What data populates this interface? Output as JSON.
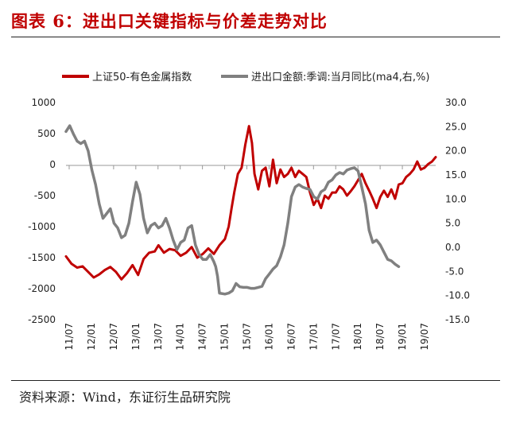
{
  "title": "图表 6：进出口关键指标与价差走势对比",
  "source": "资料来源：Wind，东证衍生品研究院",
  "colors": {
    "title": "#c00000",
    "series_primary": "#c00000",
    "series_secondary": "#808080"
  },
  "chart_data": {
    "type": "line",
    "legend_position": "top",
    "grid": false,
    "x_ticks": [
      "11/07",
      "12/01",
      "12/07",
      "13/01",
      "13/07",
      "14/01",
      "14/07",
      "15/01",
      "15/07",
      "16/01",
      "16/07",
      "17/01",
      "17/07",
      "18/01",
      "18/07",
      "19/01",
      "19/07"
    ],
    "y_left": {
      "ylim": [
        -2500,
        1000
      ],
      "ticks": [
        "1000",
        "500",
        "0",
        "-500",
        "-1000",
        "-1500",
        "-2000",
        "-2500"
      ]
    },
    "y_right": {
      "ylim": [
        -15,
        30
      ],
      "ticks": [
        "30.0",
        "25.0",
        "20.0",
        "15.0",
        "10.0",
        "5.0",
        "0.0",
        "-5.0",
        "-10.0",
        "-15.0"
      ]
    },
    "x_range": [
      0,
      100
    ],
    "series": [
      {
        "name": "上证50-有色金属指数",
        "axis": "left",
        "points": [
          [
            0,
            -1480
          ],
          [
            1.5,
            -1600
          ],
          [
            3,
            -1660
          ],
          [
            4.5,
            -1640
          ],
          [
            6,
            -1730
          ],
          [
            7.5,
            -1820
          ],
          [
            9,
            -1770
          ],
          [
            10.5,
            -1700
          ],
          [
            12,
            -1650
          ],
          [
            13.5,
            -1730
          ],
          [
            15,
            -1850
          ],
          [
            16.5,
            -1750
          ],
          [
            18,
            -1620
          ],
          [
            19.5,
            -1780
          ],
          [
            21,
            -1520
          ],
          [
            22.5,
            -1420
          ],
          [
            24,
            -1400
          ],
          [
            25,
            -1300
          ],
          [
            26.5,
            -1420
          ],
          [
            28,
            -1360
          ],
          [
            29.5,
            -1380
          ],
          [
            31,
            -1470
          ],
          [
            32.5,
            -1420
          ],
          [
            34,
            -1330
          ],
          [
            35.5,
            -1500
          ],
          [
            37,
            -1440
          ],
          [
            38.5,
            -1350
          ],
          [
            40,
            -1440
          ],
          [
            41.5,
            -1300
          ],
          [
            43,
            -1200
          ],
          [
            44,
            -1000
          ],
          [
            44.8,
            -700
          ],
          [
            45.5,
            -450
          ],
          [
            46.5,
            -150
          ],
          [
            47.5,
            -50
          ],
          [
            48.5,
            320
          ],
          [
            49.5,
            620
          ],
          [
            50.3,
            350
          ],
          [
            51,
            -150
          ],
          [
            52,
            -400
          ],
          [
            53,
            -100
          ],
          [
            54,
            -50
          ],
          [
            55,
            -350
          ],
          [
            56,
            80
          ],
          [
            57,
            -300
          ],
          [
            58,
            -80
          ],
          [
            59,
            -200
          ],
          [
            60,
            -150
          ],
          [
            61,
            -50
          ],
          [
            62,
            -200
          ],
          [
            63,
            -100
          ],
          [
            64,
            -150
          ],
          [
            65,
            -200
          ],
          [
            66,
            -450
          ],
          [
            67,
            -650
          ],
          [
            68,
            -550
          ],
          [
            69,
            -700
          ],
          [
            70,
            -500
          ],
          [
            71,
            -550
          ],
          [
            72,
            -450
          ],
          [
            73,
            -450
          ],
          [
            74,
            -350
          ],
          [
            75,
            -400
          ],
          [
            76,
            -500
          ],
          [
            77,
            -430
          ],
          [
            78,
            -350
          ],
          [
            79,
            -250
          ],
          [
            80,
            -150
          ],
          [
            81,
            -300
          ],
          [
            82,
            -420
          ],
          [
            83,
            -550
          ],
          [
            84,
            -700
          ],
          [
            85,
            -520
          ],
          [
            86,
            -420
          ],
          [
            87,
            -520
          ],
          [
            88,
            -400
          ],
          [
            89,
            -550
          ],
          [
            90,
            -320
          ],
          [
            91,
            -300
          ],
          [
            92,
            -200
          ],
          [
            93,
            -150
          ],
          [
            94,
            -80
          ],
          [
            95,
            50
          ],
          [
            96,
            -80
          ],
          [
            97,
            -50
          ],
          [
            98,
            10
          ],
          [
            99,
            50
          ],
          [
            100,
            120
          ]
        ]
      },
      {
        "name": "进出口金额:季调:当月同比(ma4,右,%)",
        "axis": "right",
        "points": [
          [
            0,
            24
          ],
          [
            1,
            25.2
          ],
          [
            2,
            23.5
          ],
          [
            3,
            22
          ],
          [
            4,
            21.5
          ],
          [
            5,
            22
          ],
          [
            6,
            20
          ],
          [
            7,
            16
          ],
          [
            8,
            13
          ],
          [
            9,
            9
          ],
          [
            10,
            6
          ],
          [
            11,
            7
          ],
          [
            12,
            8
          ],
          [
            13,
            5
          ],
          [
            14,
            4
          ],
          [
            15,
            2
          ],
          [
            16,
            2.5
          ],
          [
            17,
            5
          ],
          [
            18,
            9.5
          ],
          [
            19,
            13.5
          ],
          [
            20,
            11
          ],
          [
            21,
            6
          ],
          [
            22,
            3
          ],
          [
            23,
            4.5
          ],
          [
            24,
            5
          ],
          [
            25,
            4
          ],
          [
            26,
            4.5
          ],
          [
            27,
            6
          ],
          [
            28,
            4
          ],
          [
            29,
            1.5
          ],
          [
            30,
            -0.5
          ],
          [
            31,
            1
          ],
          [
            32,
            1.5
          ],
          [
            33,
            4
          ],
          [
            34,
            4.5
          ],
          [
            35,
            0.5
          ],
          [
            36,
            -1.5
          ],
          [
            37,
            -2.5
          ],
          [
            38,
            -2.5
          ],
          [
            39,
            -1.5
          ],
          [
            40,
            -3
          ],
          [
            40.5,
            -4
          ],
          [
            41,
            -6
          ],
          [
            41.5,
            -9.5
          ],
          [
            43,
            -9.7
          ],
          [
            44,
            -9.5
          ],
          [
            45,
            -9
          ],
          [
            46,
            -7.5
          ],
          [
            47,
            -8.2
          ],
          [
            48,
            -8.3
          ],
          [
            49,
            -8.3
          ],
          [
            50,
            -8.5
          ],
          [
            51,
            -8.5
          ],
          [
            52,
            -8.3
          ],
          [
            53,
            -8.1
          ],
          [
            54,
            -6.5
          ],
          [
            55,
            -5.5
          ],
          [
            56,
            -4.5
          ],
          [
            57,
            -3.8
          ],
          [
            58,
            -2
          ],
          [
            59,
            0.5
          ],
          [
            60,
            5
          ],
          [
            61,
            10.5
          ],
          [
            62,
            12.5
          ],
          [
            63,
            13
          ],
          [
            64,
            12.5
          ],
          [
            65,
            12.2
          ],
          [
            66,
            12
          ],
          [
            67,
            10.5
          ],
          [
            68,
            10
          ],
          [
            69,
            11.5
          ],
          [
            70,
            12
          ],
          [
            71,
            13.5
          ],
          [
            72,
            14
          ],
          [
            73,
            15
          ],
          [
            74,
            15.5
          ],
          [
            75,
            15.2
          ],
          [
            76,
            16
          ],
          [
            77,
            16.3
          ],
          [
            78,
            16.5
          ],
          [
            79,
            15.8
          ],
          [
            80,
            12.5
          ],
          [
            81,
            9
          ],
          [
            82,
            3.5
          ],
          [
            83,
            1
          ],
          [
            84,
            1.5
          ],
          [
            85,
            0.5
          ],
          [
            86,
            -1
          ],
          [
            87,
            -2.5
          ],
          [
            88,
            -2.8
          ],
          [
            89,
            -3.5
          ],
          [
            90,
            -4
          ]
        ]
      }
    ]
  }
}
